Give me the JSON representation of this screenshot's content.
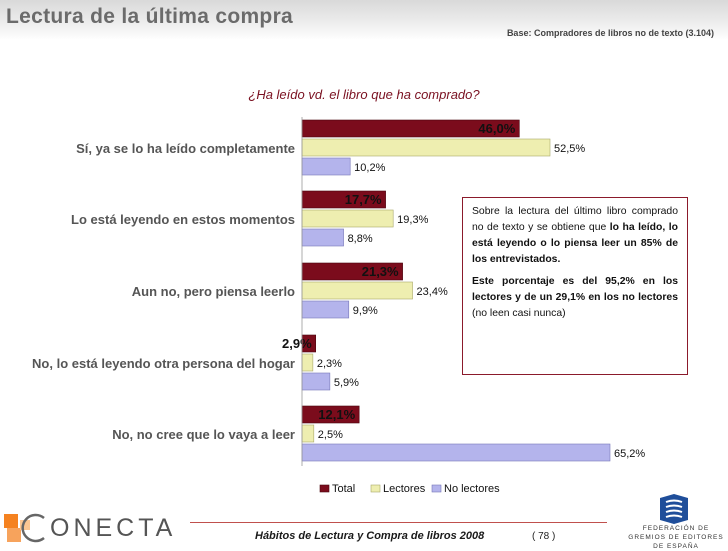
{
  "header": {
    "title": "Lectura de la última compra",
    "base_note": "Base: Compradores de libros no de texto (3.104)"
  },
  "colors": {
    "total": "#7b0c1c",
    "lectores": "#eeeeb0",
    "no_lectores": "#b4b4ec",
    "accent": "#8b1a2b"
  },
  "chart_data": {
    "type": "bar",
    "orientation": "horizontal",
    "title": "¿Ha leído vd. el libro que ha comprado?",
    "categories": [
      "Sí, ya se lo ha leído completamente",
      "Lo está leyendo en estos momentos",
      "Aun no, pero piensa leerlo",
      "No, lo está leyendo otra persona del hogar",
      "No, no cree que lo vaya a leer"
    ],
    "series": [
      {
        "name": "Total",
        "values": [
          46.0,
          17.7,
          21.3,
          2.9,
          12.1
        ],
        "labels": [
          "46,0%",
          "17,7%",
          "21,3%",
          "2,9%",
          "12,1%"
        ]
      },
      {
        "name": "Lectores",
        "values": [
          52.5,
          19.3,
          23.4,
          2.3,
          2.5
        ],
        "labels": [
          "52,5%",
          "19,3%",
          "23,4%",
          "2,3%",
          "2,5%"
        ]
      },
      {
        "name": "No lectores",
        "values": [
          10.2,
          8.8,
          9.9,
          5.9,
          65.2
        ],
        "labels": [
          "10,2%",
          "8,8%",
          "9,9%",
          "5,9%",
          "65,2%"
        ]
      }
    ],
    "xlim": [
      0,
      70
    ],
    "legend_position": "bottom"
  },
  "callout": {
    "p1_a": "Sobre la lectura del último libro comprado no de texto y se obtiene que ",
    "p1_b": "lo ha leído, lo está leyendo o lo piensa leer un 85% de los entrevistados.",
    "p2_a": "Este porcentaje es del 95,2% en los lectores y de un 29,1% en los no lectores",
    "p2_b": " (no leen casi nunca)"
  },
  "footer": {
    "title": "Hábitos de Lectura y Compra de libros 2008",
    "page": "( 78 )",
    "logo_conecta": "ONECTA",
    "logo_federacion": "FEDERACIÓN DE GREMIOS DE EDITORES DE ESPAÑA"
  }
}
